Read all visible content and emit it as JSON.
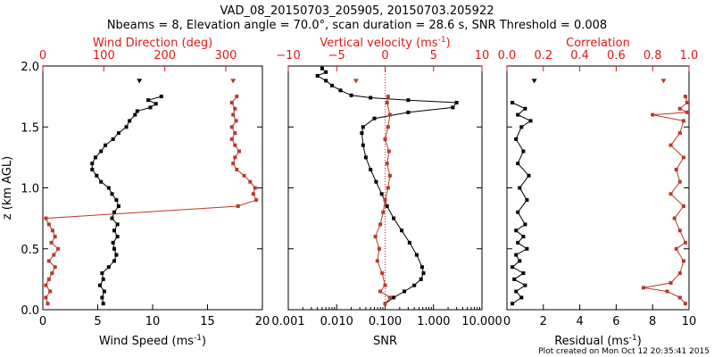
{
  "header": {
    "title_line1": "VAD_08_20150703_205905, 20150703.205922",
    "title_line2": "Nbeams = 8, Elevation angle = 70.0°, scan duration = 28.6 s, SNR Threshold = 0.008"
  },
  "footer": {
    "stamp": "Plot created on Mon Oct 12 20:35:41 2015"
  },
  "colors": {
    "black": "#000000",
    "red": "#b83a2a",
    "axis_red": "#e01818"
  },
  "chart_data": [
    {
      "type": "line",
      "panel": "wind",
      "ylabel": "z (km AGL)",
      "ylim": [
        0,
        2
      ],
      "yticks": [
        "0.0",
        "0.5",
        "1.0",
        "1.5",
        "2.0"
      ],
      "bottom_axis": {
        "label": "Wind Speed (ms",
        "label_sup": "-1",
        "label_end": ")",
        "xlim": [
          0,
          20
        ],
        "ticks": [
          "0",
          "5",
          "10",
          "15",
          "20"
        ]
      },
      "top_axis": {
        "label": "Wind Direction (deg)",
        "xlim": [
          0,
          360
        ],
        "ticks": [
          "0",
          "100",
          "200",
          "300"
        ]
      },
      "series": [
        {
          "name": "Wind Speed",
          "axis": "bottom",
          "color": "black",
          "points": [
            [
              5.5,
              0.05
            ],
            [
              5.4,
              0.1
            ],
            [
              5.6,
              0.15
            ],
            [
              5.2,
              0.2
            ],
            [
              5.5,
              0.25
            ],
            [
              5.4,
              0.3
            ],
            [
              6.0,
              0.35
            ],
            [
              6.5,
              0.4
            ],
            [
              6.7,
              0.45
            ],
            [
              6.5,
              0.5
            ],
            [
              6.4,
              0.55
            ],
            [
              6.8,
              0.6
            ],
            [
              6.5,
              0.65
            ],
            [
              6.8,
              0.7
            ],
            [
              6.3,
              0.75
            ],
            [
              6.5,
              0.8
            ],
            [
              6.9,
              0.85
            ],
            [
              6.7,
              0.9
            ],
            [
              6.3,
              0.95
            ],
            [
              6.0,
              1.0
            ],
            [
              5.3,
              1.05
            ],
            [
              4.9,
              1.1
            ],
            [
              4.5,
              1.15
            ],
            [
              4.5,
              1.2
            ],
            [
              4.8,
              1.25
            ],
            [
              5.3,
              1.3
            ],
            [
              5.7,
              1.35
            ],
            [
              6.4,
              1.4
            ],
            [
              6.9,
              1.45
            ],
            [
              7.6,
              1.5
            ],
            [
              7.9,
              1.55
            ],
            [
              8.4,
              1.6
            ],
            [
              8.6,
              1.63
            ],
            [
              9.8,
              1.66
            ],
            [
              10.3,
              1.69
            ],
            [
              9.6,
              1.72
            ],
            [
              10.8,
              1.75
            ]
          ]
        },
        {
          "name": "Wind Speed (top marker)",
          "axis": "bottom",
          "color": "black",
          "points": [
            [
              8.8,
              1.88
            ]
          ]
        },
        {
          "name": "Wind Direction",
          "axis": "top",
          "color": "red",
          "points": [
            [
              8,
              0.05
            ],
            [
              5,
              0.1
            ],
            [
              12,
              0.15
            ],
            [
              5,
              0.2
            ],
            [
              10,
              0.25
            ],
            [
              15,
              0.3
            ],
            [
              20,
              0.35
            ],
            [
              10,
              0.4
            ],
            [
              18,
              0.45
            ],
            [
              25,
              0.5
            ],
            [
              14,
              0.55
            ],
            [
              20,
              0.6
            ],
            [
              16,
              0.65
            ],
            [
              10,
              0.7
            ],
            [
              5,
              0.75
            ],
            [
              320,
              0.85
            ],
            [
              350,
              0.9
            ],
            [
              345,
              0.95
            ],
            [
              348,
              1.0
            ],
            [
              340,
              1.05
            ],
            [
              330,
              1.1
            ],
            [
              318,
              1.15
            ],
            [
              312,
              1.2
            ],
            [
              315,
              1.25
            ],
            [
              322,
              1.3
            ],
            [
              315,
              1.35
            ],
            [
              310,
              1.4
            ],
            [
              315,
              1.45
            ],
            [
              310,
              1.5
            ],
            [
              317,
              1.55
            ],
            [
              312,
              1.6
            ],
            [
              315,
              1.65
            ],
            [
              310,
              1.7
            ],
            [
              318,
              1.75
            ]
          ]
        },
        {
          "name": "Wind Direction (top marker)",
          "axis": "top",
          "color": "red",
          "points": [
            [
              312,
              1.88
            ]
          ]
        }
      ]
    },
    {
      "type": "line",
      "panel": "snr",
      "ylim": [
        0,
        2
      ],
      "bottom_axis": {
        "label": "SNR",
        "scale": "log",
        "xlim": [
          0.001,
          10
        ],
        "ticks": [
          "0.001",
          "0.010",
          "0.100",
          "1.000",
          "10.000"
        ]
      },
      "top_axis": {
        "label": "Vertical velocity (ms",
        "label_sup": "-1",
        "label_end": ")",
        "xlim": [
          -10,
          10
        ],
        "ticks": [
          "−10",
          "−5",
          "0",
          "5",
          "10"
        ]
      },
      "zero_line": 0,
      "series": [
        {
          "name": "SNR",
          "axis": "bottom",
          "color": "black",
          "points": [
            [
              0.1,
              0.05
            ],
            [
              0.15,
              0.1
            ],
            [
              0.25,
              0.15
            ],
            [
              0.4,
              0.2
            ],
            [
              0.55,
              0.25
            ],
            [
              0.62,
              0.3
            ],
            [
              0.58,
              0.35
            ],
            [
              0.45,
              0.45
            ],
            [
              0.32,
              0.55
            ],
            [
              0.22,
              0.65
            ],
            [
              0.15,
              0.75
            ],
            [
              0.11,
              0.85
            ],
            [
              0.085,
              0.95
            ],
            [
              0.065,
              1.05
            ],
            [
              0.05,
              1.15
            ],
            [
              0.04,
              1.25
            ],
            [
              0.035,
              1.35
            ],
            [
              0.033,
              1.45
            ],
            [
              0.035,
              1.5
            ],
            [
              0.06,
              1.57
            ],
            [
              0.3,
              1.62
            ],
            [
              2.5,
              1.66
            ],
            [
              3.0,
              1.7
            ],
            [
              0.3,
              1.72
            ],
            [
              0.05,
              1.74
            ],
            [
              0.02,
              1.76
            ],
            [
              0.012,
              1.8
            ],
            [
              0.008,
              1.84
            ],
            [
              0.006,
              1.88
            ],
            [
              0.004,
              1.92
            ],
            [
              0.006,
              1.95
            ],
            [
              0.005,
              1.98
            ]
          ]
        },
        {
          "name": "Vertical velocity",
          "axis": "top",
          "color": "red",
          "points": [
            [
              0,
              0.05
            ],
            [
              0.5,
              0.1
            ],
            [
              -0.5,
              0.15
            ],
            [
              0,
              0.2
            ],
            [
              -0.3,
              0.3
            ],
            [
              -0.8,
              0.4
            ],
            [
              -0.6,
              0.5
            ],
            [
              -1,
              0.6
            ],
            [
              -0.5,
              0.7
            ],
            [
              -0.2,
              0.8
            ],
            [
              0,
              0.9
            ],
            [
              0.3,
              1.0
            ],
            [
              0.5,
              1.1
            ],
            [
              0.2,
              1.2
            ],
            [
              0.4,
              1.3
            ],
            [
              0,
              1.4
            ],
            [
              0.3,
              1.5
            ],
            [
              0.5,
              1.6
            ],
            [
              0.2,
              1.7
            ],
            [
              0.3,
              1.75
            ]
          ]
        },
        {
          "name": "Vertical velocity (top marker)",
          "axis": "top",
          "color": "red",
          "points": [
            [
              -3,
              1.88
            ]
          ]
        }
      ]
    },
    {
      "type": "line",
      "panel": "residual",
      "ylim": [
        0,
        2
      ],
      "bottom_axis": {
        "label": "Residual (ms",
        "label_sup": "-1",
        "label_end": ")",
        "xlim": [
          0,
          10
        ],
        "ticks": [
          "0",
          "2",
          "4",
          "6",
          "8",
          "10"
        ]
      },
      "top_axis": {
        "label": "Correlation",
        "xlim": [
          0,
          1
        ],
        "ticks": [
          "0.0",
          "0.2",
          "0.4",
          "0.6",
          "0.8",
          "1.0"
        ]
      },
      "series": [
        {
          "name": "Residual",
          "axis": "bottom",
          "color": "black",
          "points": [
            [
              0.3,
              0.05
            ],
            [
              0.8,
              0.1
            ],
            [
              0.5,
              0.15
            ],
            [
              1.0,
              0.2
            ],
            [
              0.4,
              0.25
            ],
            [
              0.9,
              0.3
            ],
            [
              0.3,
              0.35
            ],
            [
              0.7,
              0.4
            ],
            [
              0.5,
              0.45
            ],
            [
              1.1,
              0.5
            ],
            [
              0.6,
              0.55
            ],
            [
              0.9,
              0.6
            ],
            [
              0.5,
              0.65
            ],
            [
              1.0,
              0.7
            ],
            [
              0.6,
              0.8
            ],
            [
              1.1,
              0.9
            ],
            [
              0.7,
              1.0
            ],
            [
              1.2,
              1.1
            ],
            [
              0.6,
              1.2
            ],
            [
              0.9,
              1.3
            ],
            [
              0.5,
              1.4
            ],
            [
              0.8,
              1.5
            ],
            [
              1.3,
              1.55
            ],
            [
              0.6,
              1.6
            ],
            [
              1.0,
              1.65
            ],
            [
              0.3,
              1.7
            ]
          ]
        },
        {
          "name": "Residual (top marker)",
          "axis": "bottom",
          "color": "black",
          "points": [
            [
              1.5,
              1.88
            ]
          ]
        },
        {
          "name": "Correlation",
          "axis": "top",
          "color": "red",
          "points": [
            [
              0.98,
              0.05
            ],
            [
              0.95,
              0.1
            ],
            [
              0.88,
              0.15
            ],
            [
              0.75,
              0.18
            ],
            [
              0.9,
              0.22
            ],
            [
              0.95,
              0.3
            ],
            [
              0.97,
              0.4
            ],
            [
              0.93,
              0.5
            ],
            [
              0.98,
              0.55
            ],
            [
              0.95,
              0.65
            ],
            [
              0.92,
              0.75
            ],
            [
              0.97,
              0.85
            ],
            [
              0.9,
              0.95
            ],
            [
              0.95,
              1.05
            ],
            [
              0.93,
              1.15
            ],
            [
              0.97,
              1.25
            ],
            [
              0.9,
              1.35
            ],
            [
              0.95,
              1.45
            ],
            [
              0.97,
              1.55
            ],
            [
              0.8,
              1.6
            ],
            [
              0.99,
              1.62
            ],
            [
              0.95,
              1.65
            ],
            [
              0.99,
              1.7
            ],
            [
              0.98,
              1.75
            ]
          ]
        },
        {
          "name": "Correlation (top marker)",
          "axis": "top",
          "color": "red",
          "points": [
            [
              0.86,
              1.88
            ]
          ]
        }
      ]
    }
  ]
}
